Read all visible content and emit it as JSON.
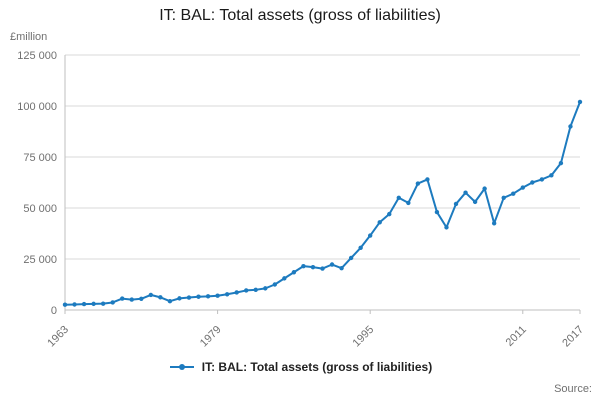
{
  "page": {
    "title": "IT: BAL: Total assets (gross of liabilities)",
    "source_label": "Source:"
  },
  "legend": {
    "label": "IT: BAL: Total assets (gross of liabilities)"
  },
  "chart_data": {
    "type": "line",
    "title": "IT: BAL: Total assets (gross of liabilities)",
    "xlabel": "",
    "ylabel": "£million",
    "legend_position": "bottom",
    "grid": true,
    "xlim": [
      1963,
      2017
    ],
    "ylim": [
      0,
      125000
    ],
    "xtick_values": [
      1963,
      1979,
      1995,
      2011,
      2017
    ],
    "xtick_labels": [
      "1963",
      "1979",
      "1995",
      "2011",
      "2017"
    ],
    "ytick_values": [
      0,
      25000,
      50000,
      75000,
      100000,
      125000
    ],
    "ytick_labels": [
      "0",
      "25 000",
      "50 000",
      "75 000",
      "100 000",
      "125 000"
    ],
    "series": [
      {
        "name": "IT: BAL: Total assets (gross of liabilities)",
        "x": [
          1963,
          1964,
          1965,
          1966,
          1967,
          1968,
          1969,
          1970,
          1971,
          1972,
          1973,
          1974,
          1975,
          1976,
          1977,
          1978,
          1979,
          1980,
          1981,
          1982,
          1983,
          1984,
          1985,
          1986,
          1987,
          1988,
          1989,
          1990,
          1991,
          1992,
          1993,
          1994,
          1995,
          1996,
          1997,
          1998,
          1999,
          2000,
          2001,
          2002,
          2003,
          2004,
          2005,
          2006,
          2007,
          2008,
          2009,
          2010,
          2011,
          2012,
          2013,
          2014,
          2015,
          2016,
          2017
        ],
        "values": [
          2600,
          2700,
          2900,
          3000,
          3100,
          3700,
          5600,
          5100,
          5500,
          7400,
          6200,
          4300,
          5700,
          6100,
          6500,
          6700,
          7000,
          7700,
          8600,
          9600,
          9900,
          10600,
          12500,
          15500,
          18500,
          21500,
          21000,
          20300,
          22300,
          20500,
          25500,
          30500,
          36500,
          43000,
          47000,
          55000,
          52500,
          62000,
          64000,
          48000,
          40500,
          52000,
          57500,
          53000,
          59500,
          42500,
          55000,
          57000,
          60000,
          62500,
          64000,
          66000,
          72000,
          90000,
          102000
        ]
      }
    ],
    "colors": {
      "line": "#1d7bbf",
      "grid": "#d9d9d9",
      "axis": "#bfbfbf",
      "tick_text": "#707070"
    }
  }
}
